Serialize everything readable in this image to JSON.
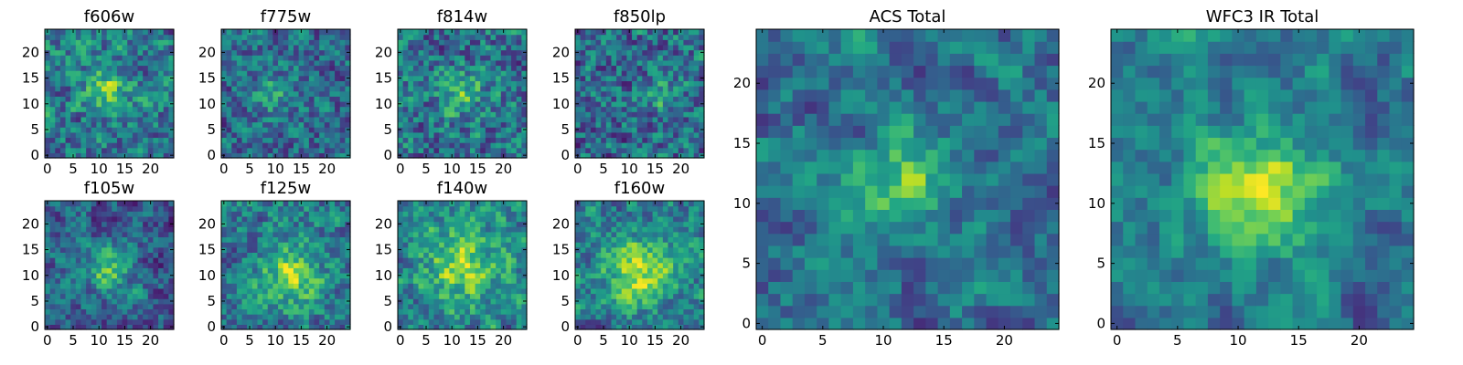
{
  "figure": {
    "description_free": true
  },
  "chart_data": [
    {
      "type": "heatmap",
      "title": "f606w",
      "grid_size": 25,
      "xlim": [
        0,
        24
      ],
      "ylim": [
        0,
        24
      ],
      "xticks": [
        "0",
        "5",
        "10",
        "15",
        "20"
      ],
      "yticks": [
        "0",
        "5",
        "10",
        "15",
        "20"
      ],
      "colormap": "viridis",
      "seed": 11,
      "noise": 0.55,
      "peak": {
        "x": 12,
        "y": 13,
        "amp": 0.35,
        "sigma": 3.0
      },
      "base": 0.4
    },
    {
      "type": "heatmap",
      "title": "f775w",
      "grid_size": 25,
      "xlim": [
        0,
        24
      ],
      "ylim": [
        0,
        24
      ],
      "xticks": [
        "0",
        "5",
        "10",
        "15",
        "20"
      ],
      "yticks": [
        "0",
        "5",
        "10",
        "15",
        "20"
      ],
      "colormap": "viridis",
      "seed": 23,
      "noise": 0.5,
      "peak": {
        "x": 9,
        "y": 12,
        "amp": 0.25,
        "sigma": 3.0
      },
      "base": 0.35
    },
    {
      "type": "heatmap",
      "title": "f814w",
      "grid_size": 25,
      "xlim": [
        0,
        24
      ],
      "ylim": [
        0,
        24
      ],
      "xticks": [
        "0",
        "5",
        "10",
        "15",
        "20"
      ],
      "yticks": [
        "0",
        "5",
        "10",
        "15",
        "20"
      ],
      "colormap": "viridis",
      "seed": 37,
      "noise": 0.6,
      "peak": {
        "x": 12,
        "y": 12,
        "amp": 0.3,
        "sigma": 3.0
      },
      "base": 0.38
    },
    {
      "type": "heatmap",
      "title": "f850lp",
      "grid_size": 25,
      "xlim": [
        0,
        24
      ],
      "ylim": [
        0,
        24
      ],
      "xticks": [
        "0",
        "5",
        "10",
        "15",
        "20"
      ],
      "yticks": [
        "0",
        "5",
        "10",
        "15",
        "20"
      ],
      "colormap": "viridis",
      "seed": 41,
      "noise": 0.6,
      "peak": {
        "x": 16,
        "y": 12,
        "amp": 0.25,
        "sigma": 2.5
      },
      "base": 0.35
    },
    {
      "type": "heatmap",
      "title": "f105w",
      "grid_size": 25,
      "xlim": [
        0,
        24
      ],
      "ylim": [
        0,
        24
      ],
      "xticks": [
        "0",
        "5",
        "10",
        "15",
        "20"
      ],
      "yticks": [
        "0",
        "5",
        "10",
        "15",
        "20"
      ],
      "colormap": "viridis",
      "seed": 53,
      "noise": 0.4,
      "peak": {
        "x": 12,
        "y": 11,
        "amp": 0.4,
        "sigma": 3.0
      },
      "base": 0.32
    },
    {
      "type": "heatmap",
      "title": "f125w",
      "grid_size": 25,
      "xlim": [
        0,
        24
      ],
      "ylim": [
        0,
        24
      ],
      "xticks": [
        "0",
        "5",
        "10",
        "15",
        "20"
      ],
      "yticks": [
        "0",
        "5",
        "10",
        "15",
        "20"
      ],
      "colormap": "viridis",
      "seed": 67,
      "noise": 0.45,
      "peak": {
        "x": 13,
        "y": 10,
        "amp": 0.4,
        "sigma": 4.0
      },
      "base": 0.42
    },
    {
      "type": "heatmap",
      "title": "f140w",
      "grid_size": 25,
      "xlim": [
        0,
        24
      ],
      "ylim": [
        0,
        24
      ],
      "xticks": [
        "0",
        "5",
        "10",
        "15",
        "20"
      ],
      "yticks": [
        "0",
        "5",
        "10",
        "15",
        "20"
      ],
      "colormap": "viridis",
      "seed": 79,
      "noise": 0.45,
      "peak": {
        "x": 12,
        "y": 12,
        "amp": 0.4,
        "sigma": 5.0
      },
      "base": 0.45
    },
    {
      "type": "heatmap",
      "title": "f160w",
      "grid_size": 25,
      "xlim": [
        0,
        24
      ],
      "ylim": [
        0,
        24
      ],
      "xticks": [
        "0",
        "5",
        "10",
        "15",
        "20"
      ],
      "yticks": [
        "0",
        "5",
        "10",
        "15",
        "20"
      ],
      "colormap": "viridis",
      "seed": 97,
      "noise": 0.4,
      "peak": {
        "x": 12,
        "y": 11,
        "amp": 0.45,
        "sigma": 4.5
      },
      "base": 0.42
    },
    {
      "type": "heatmap",
      "title": "ACS Total",
      "grid_size": 25,
      "xlim": [
        0,
        24
      ],
      "ylim": [
        0,
        24
      ],
      "xticks": [
        "0",
        "5",
        "10",
        "15",
        "20"
      ],
      "yticks": [
        "0",
        "5",
        "10",
        "15",
        "20"
      ],
      "colormap": "viridis",
      "seed": 101,
      "noise": 0.3,
      "peak": {
        "x": 12,
        "y": 12,
        "amp": 0.45,
        "sigma": 2.5
      },
      "base": 0.38
    },
    {
      "type": "heatmap",
      "title": "WFC3 IR Total",
      "grid_size": 25,
      "xlim": [
        0,
        24
      ],
      "ylim": [
        0,
        24
      ],
      "xticks": [
        "0",
        "5",
        "10",
        "15",
        "20"
      ],
      "yticks": [
        "0",
        "5",
        "10",
        "15",
        "20"
      ],
      "colormap": "viridis",
      "seed": 131,
      "noise": 0.22,
      "peak": {
        "x": 12,
        "y": 11,
        "amp": 0.55,
        "sigma": 3.5
      },
      "base": 0.4
    }
  ]
}
